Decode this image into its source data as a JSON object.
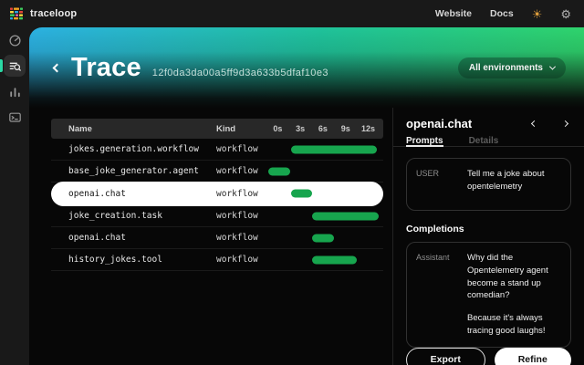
{
  "topbar": {
    "brand": "traceloop",
    "links": [
      {
        "label": "Website"
      },
      {
        "label": "Docs"
      }
    ],
    "theme_toggle_glyph": "☀",
    "settings_glyph": "⚙",
    "icons": {
      "logo": "traceloop-logo-icon",
      "theme_toggle": "sun-icon",
      "settings": "gear-icon"
    }
  },
  "sidebar": {
    "items": [
      {
        "name": "dashboard",
        "icon": "gauge-icon",
        "active": false
      },
      {
        "name": "traces",
        "icon": "trace-search-icon",
        "active": true
      },
      {
        "name": "analytics",
        "icon": "bar-chart-icon",
        "active": false
      },
      {
        "name": "console",
        "icon": "terminal-icon",
        "active": false
      }
    ]
  },
  "hero": {
    "title": "Trace",
    "trace_id": "12f0da3da00a5ff9d3a633b5dfaf10e3",
    "env_selector": {
      "label": "All environments"
    }
  },
  "table": {
    "columns": {
      "name": "Name",
      "kind": "Kind"
    },
    "axis": {
      "min_s": -1.5,
      "max_s": 14,
      "ticks": [
        {
          "label": "0s",
          "s": 0
        },
        {
          "label": "3s",
          "s": 3
        },
        {
          "label": "6s",
          "s": 6
        },
        {
          "label": "9s",
          "s": 9
        },
        {
          "label": "12s",
          "s": 12
        }
      ]
    },
    "bar_color": "#17a54e",
    "rows": [
      {
        "name": "jokes.generation.workflow",
        "kind": "workflow",
        "start_s": 1.8,
        "end_s": 13.2,
        "selected": false
      },
      {
        "name": "base_joke_generator.agent",
        "kind": "workflow",
        "start_s": -1.2,
        "end_s": 1.6,
        "selected": false
      },
      {
        "name": "openai.chat",
        "kind": "workflow",
        "start_s": 1.8,
        "end_s": 4.6,
        "selected": true
      },
      {
        "name": "joke_creation.task",
        "kind": "workflow",
        "start_s": 4.5,
        "end_s": 13.4,
        "selected": false
      },
      {
        "name": "openai.chat",
        "kind": "workflow",
        "start_s": 4.6,
        "end_s": 7.5,
        "selected": false
      },
      {
        "name": "history_jokes.tool",
        "kind": "workflow",
        "start_s": 4.5,
        "end_s": 10.5,
        "selected": false
      }
    ]
  },
  "panel": {
    "title": "openai.chat",
    "tabs": [
      {
        "label": "Prompts",
        "active": true
      },
      {
        "label": "Details",
        "active": false
      }
    ],
    "prompt": {
      "role": "USER",
      "message": "Tell me a joke about opentelemetry"
    },
    "completions_heading": "Completions",
    "completion": {
      "role": "Assistant",
      "lines": [
        "Why did the Opentelemetry agent become a stand up comedian?",
        "Because it's always tracing good laughs!"
      ]
    },
    "actions": {
      "export": "Export",
      "refine": "Refine"
    }
  },
  "colors": {
    "accent_green": "#17a54e",
    "gradient_start": "#2cb1e2",
    "gradient_end": "#2fd46b",
    "indicator_teal": "#2bd9a5"
  }
}
